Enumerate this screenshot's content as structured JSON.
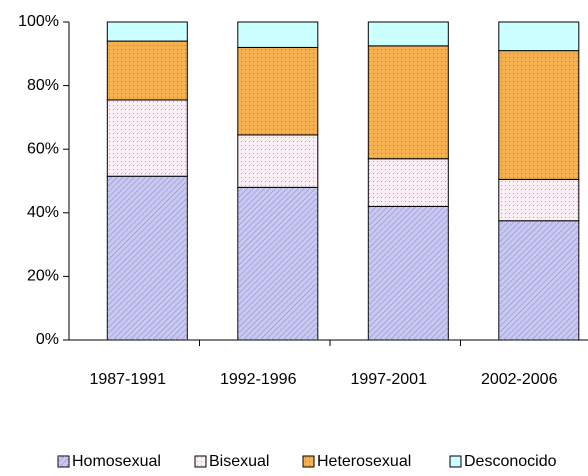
{
  "chart_data": {
    "type": "stacked_bar",
    "categories": [
      "1987-1991",
      "1992-1996",
      "1997-2001",
      "2002-2006"
    ],
    "series": [
      {
        "name": "Homosexual",
        "color": "#c8c8f0",
        "values": [
          51.5,
          48,
          42,
          37.5
        ]
      },
      {
        "name": "Bisexual",
        "color": "#fbeef4",
        "values": [
          24,
          16.5,
          15,
          13
        ]
      },
      {
        "name": "Heterosexual",
        "color": "#f7b050",
        "values": [
          18.5,
          27.5,
          35.5,
          40.5
        ]
      },
      {
        "name": "Desconocido",
        "color": "#ccffff",
        "values": [
          6,
          8,
          7.5,
          9
        ]
      }
    ],
    "ylim": [
      0,
      100
    ],
    "yticks": [
      {
        "value": 0,
        "label": "0%"
      },
      {
        "value": 20,
        "label": "20%"
      },
      {
        "value": 40,
        "label": "40%"
      },
      {
        "value": 60,
        "label": "60%"
      },
      {
        "value": 80,
        "label": "80%"
      },
      {
        "value": 100,
        "label": "100%"
      }
    ],
    "legend": "bottom"
  }
}
